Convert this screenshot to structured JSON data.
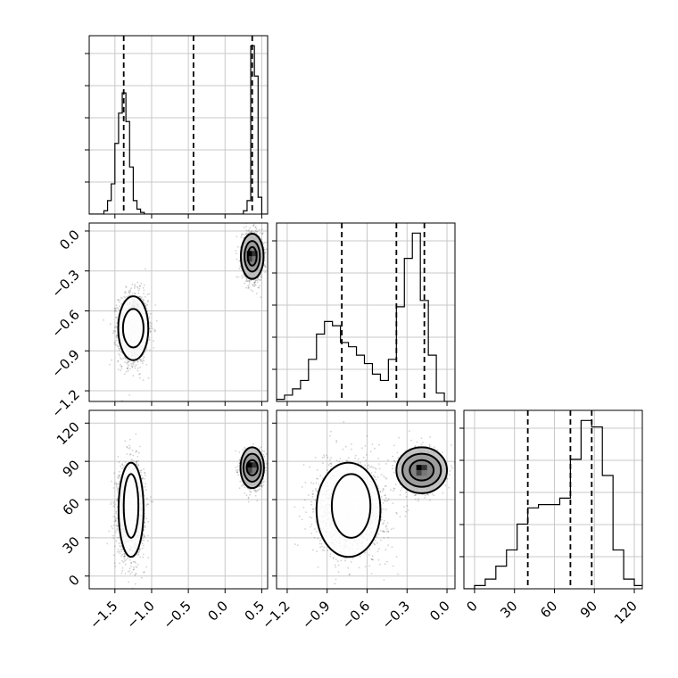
{
  "chart_data": [
    {
      "type": "histogram",
      "panel": "p1",
      "bins": [
        -1.85,
        -1.8,
        -1.75,
        -1.7,
        -1.65,
        -1.6,
        -1.55,
        -1.5,
        -1.45,
        -1.4,
        -1.35,
        -1.3,
        -1.25,
        -1.2,
        -1.15,
        -1.1,
        -1.05,
        -1.0,
        -0.95,
        -0.9,
        -0.85,
        -0.8,
        -0.75,
        -0.7,
        -0.65,
        -0.6,
        -0.55,
        -0.5,
        -0.45,
        -0.4,
        -0.35,
        -0.3,
        -0.25,
        -0.2,
        -0.15,
        -0.1,
        -0.05,
        0.0,
        0.05,
        0.1,
        0.15,
        0.2,
        0.25,
        0.3,
        0.35,
        0.4,
        0.45,
        0.5,
        0.55,
        0.6,
        0.65
      ],
      "counts": [
        0,
        0,
        0,
        0,
        2,
        8,
        18,
        42,
        60,
        72,
        55,
        28,
        8,
        3,
        1,
        0,
        0,
        0,
        0,
        0,
        0,
        0,
        0,
        0,
        0,
        0,
        0,
        0,
        0,
        0,
        0,
        0,
        0,
        0,
        0,
        0,
        0,
        0,
        0,
        0,
        0,
        0,
        2,
        8,
        100,
        82,
        10,
        0,
        0,
        0
      ],
      "quantiles": [
        -1.38,
        -0.43,
        0.37
      ],
      "xlim": [
        -1.85,
        0.58
      ]
    },
    {
      "type": "histogram",
      "panel": "p4",
      "bins": [
        -1.28,
        -1.22,
        -1.16,
        -1.1,
        -1.04,
        -0.98,
        -0.92,
        -0.86,
        -0.8,
        -0.74,
        -0.68,
        -0.62,
        -0.56,
        -0.5,
        -0.44,
        -0.38,
        -0.32,
        -0.26,
        -0.2,
        -0.14,
        -0.08,
        -0.02,
        0.04
      ],
      "counts": [
        1,
        3,
        6,
        10,
        20,
        32,
        38,
        36,
        28,
        26,
        22,
        18,
        13,
        10,
        20,
        45,
        68,
        80,
        48,
        22,
        4,
        0
      ],
      "quantiles": [
        -0.79,
        -0.38,
        -0.17
      ],
      "xlim": [
        -1.28,
        0.06
      ]
    },
    {
      "type": "histogram",
      "panel": "p6",
      "bins": [
        -8,
        0,
        8,
        16,
        24,
        32,
        40,
        48,
        56,
        64,
        72,
        80,
        88,
        96,
        104,
        112,
        120,
        128
      ],
      "counts": [
        0,
        1,
        3,
        7,
        12,
        20,
        25,
        26,
        26,
        28,
        40,
        52,
        50,
        35,
        12,
        3,
        1
      ],
      "quantiles": [
        40,
        72,
        88
      ],
      "xlim": [
        -8,
        126
      ]
    },
    {
      "type": "scatter-contour",
      "panel": "p2",
      "xlim": [
        -1.85,
        0.58
      ],
      "ylim": [
        -1.28,
        0.06
      ],
      "modes": [
        {
          "cx": -1.25,
          "cy": -0.73,
          "sx": 0.1,
          "sy": 0.13,
          "n": 1700
        },
        {
          "cx": 0.37,
          "cy": -0.19,
          "sx": 0.07,
          "sy": 0.09,
          "n": 1300
        }
      ],
      "contours": [
        {
          "cx": -1.25,
          "cy": -0.73,
          "rx": 0.205,
          "ry": 0.24,
          "peak": false
        },
        {
          "cx": -1.25,
          "cy": -0.73,
          "rx": 0.14,
          "ry": 0.145,
          "peak": false
        },
        {
          "cx": 0.37,
          "cy": -0.19,
          "rx": 0.155,
          "ry": 0.17,
          "peak": true
        },
        {
          "cx": 0.37,
          "cy": -0.19,
          "rx": 0.105,
          "ry": 0.115,
          "peak": true
        },
        {
          "cx": 0.37,
          "cy": -0.19,
          "rx": 0.06,
          "ry": 0.07,
          "peak": true
        }
      ]
    },
    {
      "type": "scatter-contour",
      "panel": "p3",
      "xlim": [
        -1.85,
        0.58
      ],
      "ylim": [
        -10,
        130
      ],
      "modes": [
        {
          "cx": -1.28,
          "cy": 52,
          "sx": 0.09,
          "sy": 18,
          "n": 1700
        },
        {
          "cx": 0.37,
          "cy": 83,
          "sx": 0.07,
          "sy": 7,
          "n": 1300
        }
      ],
      "contours": [
        {
          "cx": -1.28,
          "cy": 52,
          "rx": 0.17,
          "ry": 37,
          "peak": false
        },
        {
          "cx": -1.28,
          "cy": 55,
          "rx": 0.1,
          "ry": 25,
          "peak": false
        },
        {
          "cx": 0.37,
          "cy": 85,
          "rx": 0.16,
          "ry": 16,
          "peak": true
        },
        {
          "cx": 0.37,
          "cy": 85,
          "rx": 0.12,
          "ry": 11,
          "peak": true
        },
        {
          "cx": 0.37,
          "cy": 85,
          "rx": 0.075,
          "ry": 6,
          "peak": true
        }
      ]
    },
    {
      "type": "scatter-contour",
      "panel": "p5",
      "xlim": [
        -1.28,
        0.06
      ],
      "ylim": [
        -10,
        130
      ],
      "modes": [
        {
          "cx": -0.72,
          "cy": 53,
          "sx": 0.13,
          "sy": 18,
          "n": 1800
        },
        {
          "cx": -0.19,
          "cy": 83,
          "sx": 0.08,
          "sy": 8,
          "n": 1300
        }
      ],
      "contours": [
        {
          "cx": -0.74,
          "cy": 52,
          "rx": 0.24,
          "ry": 37,
          "peak": false
        },
        {
          "cx": -0.72,
          "cy": 55,
          "rx": 0.145,
          "ry": 25,
          "peak": false
        },
        {
          "cx": -0.19,
          "cy": 83,
          "rx": 0.19,
          "ry": 18,
          "peak": true
        },
        {
          "cx": -0.19,
          "cy": 83,
          "rx": 0.145,
          "ry": 13,
          "peak": true
        },
        {
          "cx": -0.19,
          "cy": 83,
          "rx": 0.09,
          "ry": 8,
          "peak": true
        }
      ]
    }
  ],
  "axes": {
    "x1_ticks": [
      "−1.5",
      "−1.0",
      "−0.5",
      "0.0",
      "0.5"
    ],
    "x1_values": [
      -1.5,
      -1.0,
      -0.5,
      0.0,
      0.5
    ],
    "x2_ticks": [
      "−1.2",
      "−0.9",
      "−0.6",
      "−0.3",
      "0.0"
    ],
    "x2_values": [
      -1.2,
      -0.9,
      -0.6,
      -0.3,
      0.0
    ],
    "x3_ticks": [
      "0",
      "30",
      "60",
      "90",
      "120"
    ],
    "x3_values": [
      0,
      30,
      60,
      90,
      120
    ],
    "y2_ticks": [
      "0.0",
      "−0.3",
      "−0.6",
      "−0.9",
      "−1.2"
    ],
    "y2_values": [
      0.0,
      -0.3,
      -0.6,
      -0.9,
      -1.2
    ],
    "y3_ticks": [
      "120",
      "90",
      "60",
      "30",
      "0"
    ],
    "y3_values": [
      120,
      90,
      60,
      30,
      0
    ]
  },
  "grid": true
}
